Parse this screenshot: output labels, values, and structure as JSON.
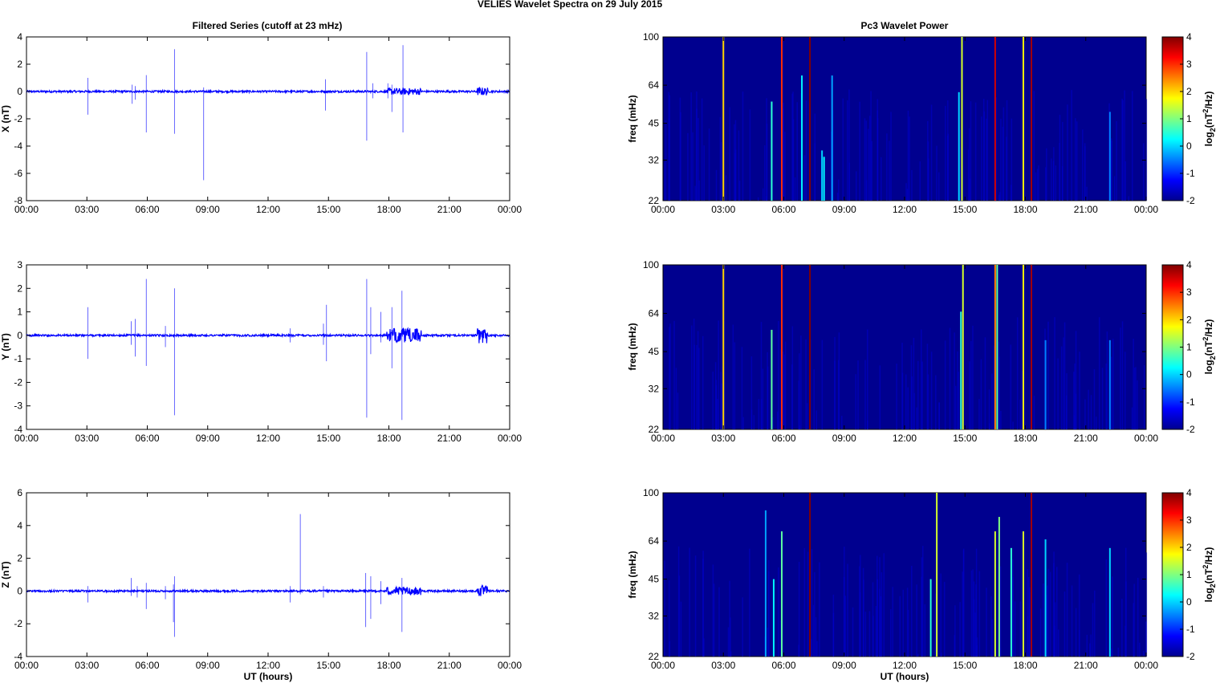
{
  "figure": {
    "title": "VELIES Wavelet Spectra on 29 July      2015",
    "left_title": "Filtered Series (cutoff at 23 mHz)",
    "right_title": "Pc3 Wavelet Power",
    "xlabel": "UT (hours)"
  },
  "chart_data": [
    {
      "type": "line",
      "title": "Filtered Series (cutoff at 23 mHz)",
      "ylabel": "X (nT)",
      "xlabel": "",
      "xlim": [
        0,
        24
      ],
      "ylim": [
        -8,
        4
      ],
      "yticks": [
        4,
        2,
        0,
        -2,
        -4,
        -6,
        -8
      ],
      "xticks": [
        "00:00",
        "03:00",
        "06:00",
        "09:00",
        "12:00",
        "15:00",
        "18:00",
        "21:00",
        "00:00"
      ],
      "color": "#0000ff",
      "series": [
        {
          "name": "",
          "baseline": 0.0
        }
      ],
      "spikes": [
        [
          3.05,
          1.0,
          -1.7
        ],
        [
          5.25,
          0.5,
          -0.9
        ],
        [
          5.4,
          0.4,
          -0.6
        ],
        [
          5.95,
          1.2,
          -3.0
        ],
        [
          7.35,
          3.1,
          -3.1
        ],
        [
          8.8,
          0.3,
          -6.5
        ],
        [
          14.85,
          0.9,
          -1.4
        ],
        [
          16.9,
          2.9,
          -3.6
        ],
        [
          17.2,
          0.6,
          -0.5
        ],
        [
          17.95,
          0.6,
          -0.5
        ],
        [
          18.15,
          0.5,
          -1.5
        ],
        [
          18.7,
          3.4,
          -3.0
        ]
      ],
      "bursts": [
        [
          17.9,
          19.6,
          0.5
        ],
        [
          22.4,
          22.9,
          0.6
        ]
      ]
    },
    {
      "type": "line",
      "ylabel": "Y (nT)",
      "xlabel": "",
      "xlim": [
        0,
        24
      ],
      "ylim": [
        -4,
        3
      ],
      "yticks": [
        3,
        2,
        1,
        0,
        -1,
        -2,
        -3,
        -4
      ],
      "xticks": [
        "00:00",
        "03:00",
        "06:00",
        "09:00",
        "12:00",
        "15:00",
        "18:00",
        "21:00",
        "00:00"
      ],
      "color": "#0000ff",
      "series": [
        {
          "name": "",
          "baseline": 0.0
        }
      ],
      "spikes": [
        [
          3.05,
          1.2,
          -1.0
        ],
        [
          5.2,
          0.6,
          -0.4
        ],
        [
          5.4,
          0.7,
          -0.9
        ],
        [
          5.95,
          2.4,
          -1.3
        ],
        [
          6.9,
          0.4,
          -0.5
        ],
        [
          7.35,
          2.0,
          -3.4
        ],
        [
          13.1,
          0.3,
          -0.3
        ],
        [
          14.75,
          0.5,
          -0.4
        ],
        [
          14.9,
          1.3,
          -1.1
        ],
        [
          16.9,
          2.4,
          -3.5
        ],
        [
          17.1,
          1.2,
          -0.8
        ],
        [
          17.6,
          1.0,
          -0.3
        ],
        [
          18.15,
          1.2,
          -1.4
        ],
        [
          18.65,
          1.9,
          -3.6
        ]
      ],
      "bursts": [
        [
          17.9,
          19.6,
          0.6
        ],
        [
          22.4,
          22.9,
          0.7
        ]
      ]
    },
    {
      "type": "line",
      "ylabel": "Z (nT)",
      "xlabel": "UT (hours)",
      "xlim": [
        0,
        24
      ],
      "ylim": [
        -4,
        6
      ],
      "yticks": [
        6,
        4,
        2,
        0,
        -2,
        -4
      ],
      "xticks": [
        "00:00",
        "03:00",
        "06:00",
        "09:00",
        "12:00",
        "15:00",
        "18:00",
        "21:00",
        "00:00"
      ],
      "color": "#0000ff",
      "series": [
        {
          "name": "",
          "baseline": 0.0
        }
      ],
      "spikes": [
        [
          3.05,
          0.3,
          -0.7
        ],
        [
          5.2,
          0.8,
          -0.3
        ],
        [
          5.5,
          0.3,
          -0.4
        ],
        [
          5.95,
          0.5,
          -1.1
        ],
        [
          6.9,
          0.3,
          -0.5
        ],
        [
          7.35,
          0.9,
          -2.8
        ],
        [
          7.3,
          0.4,
          -1.9
        ],
        [
          13.1,
          0.3,
          -0.7
        ],
        [
          13.6,
          4.7,
          -0.2
        ],
        [
          14.75,
          0.3,
          -0.4
        ],
        [
          16.85,
          1.1,
          -2.2
        ],
        [
          17.1,
          0.9,
          -1.7
        ],
        [
          17.6,
          0.6,
          -0.8
        ],
        [
          18.65,
          0.8,
          -2.5
        ]
      ],
      "bursts": [
        [
          17.9,
          19.6,
          0.5
        ],
        [
          22.4,
          22.9,
          0.7
        ]
      ]
    },
    {
      "type": "heatmap",
      "title": "Pc3 Wavelet Power",
      "ylabel": "freq (mHz)",
      "xlabel": "",
      "xlim": [
        0,
        24
      ],
      "ylim": [
        22,
        100
      ],
      "yticks": [
        100,
        64,
        45,
        32,
        22
      ],
      "xticks": [
        "00:00",
        "03:00",
        "06:00",
        "09:00",
        "12:00",
        "15:00",
        "18:00",
        "21:00",
        "00:00"
      ],
      "colorbar": {
        "label": "log2(nT2/Hz)",
        "range": [
          -2,
          4
        ],
        "ticks": [
          4,
          3,
          2,
          1,
          0,
          -1,
          -2
        ]
      },
      "events": [
        [
          3.0,
          2.0,
          100
        ],
        [
          5.4,
          0.5,
          55
        ],
        [
          5.9,
          3.0,
          100
        ],
        [
          6.9,
          0.2,
          70
        ],
        [
          7.3,
          4.0,
          100
        ],
        [
          7.9,
          0.0,
          35
        ],
        [
          8.0,
          0.2,
          33
        ],
        [
          8.4,
          -0.3,
          70
        ],
        [
          14.7,
          0.0,
          60
        ],
        [
          14.85,
          1.5,
          100
        ],
        [
          16.5,
          3.5,
          100
        ],
        [
          17.9,
          1.8,
          100
        ],
        [
          18.3,
          3.8,
          100
        ],
        [
          22.2,
          -0.5,
          50
        ]
      ]
    },
    {
      "type": "heatmap",
      "ylabel": "freq (mHz)",
      "xlabel": "",
      "xlim": [
        0,
        24
      ],
      "ylim": [
        22,
        100
      ],
      "yticks": [
        100,
        64,
        45,
        32,
        22
      ],
      "xticks": [
        "00:00",
        "03:00",
        "06:00",
        "09:00",
        "12:00",
        "15:00",
        "18:00",
        "21:00",
        "00:00"
      ],
      "colorbar": {
        "label": "log2(nT2/Hz)",
        "range": [
          -2,
          4
        ],
        "ticks": [
          4,
          3,
          2,
          1,
          0,
          -1,
          -2
        ]
      },
      "events": [
        [
          3.0,
          2.0,
          100
        ],
        [
          5.4,
          0.8,
          55
        ],
        [
          5.9,
          3.0,
          100
        ],
        [
          7.3,
          4.0,
          100
        ],
        [
          14.8,
          0.5,
          65
        ],
        [
          14.9,
          1.5,
          100
        ],
        [
          16.5,
          2.5,
          100
        ],
        [
          16.6,
          0.8,
          100
        ],
        [
          17.9,
          1.8,
          100
        ],
        [
          18.3,
          3.8,
          100
        ],
        [
          19.0,
          -0.5,
          50
        ],
        [
          22.2,
          -0.5,
          50
        ]
      ]
    },
    {
      "type": "heatmap",
      "ylabel": "freq (mHz)",
      "xlabel": "UT (hours)",
      "xlim": [
        0,
        24
      ],
      "ylim": [
        22,
        100
      ],
      "yticks": [
        100,
        64,
        45,
        32,
        22
      ],
      "xticks": [
        "00:00",
        "03:00",
        "06:00",
        "09:00",
        "12:00",
        "15:00",
        "18:00",
        "21:00",
        "00:00"
      ],
      "colorbar": {
        "label": "log2(nT2/Hz)",
        "range": [
          -2,
          4
        ],
        "ticks": [
          4,
          3,
          2,
          1,
          0,
          -1,
          -2
        ]
      },
      "events": [
        [
          5.1,
          -0.3,
          85
        ],
        [
          5.5,
          0.2,
          45
        ],
        [
          5.9,
          0.8,
          70
        ],
        [
          7.3,
          4.0,
          100
        ],
        [
          13.3,
          0.5,
          45
        ],
        [
          13.6,
          1.5,
          100
        ],
        [
          16.5,
          1.5,
          70
        ],
        [
          16.7,
          1.0,
          80
        ],
        [
          17.3,
          0.5,
          60
        ],
        [
          17.9,
          1.5,
          70
        ],
        [
          18.3,
          3.8,
          100
        ],
        [
          19.0,
          0.0,
          65
        ],
        [
          22.2,
          0.0,
          60
        ]
      ]
    }
  ]
}
